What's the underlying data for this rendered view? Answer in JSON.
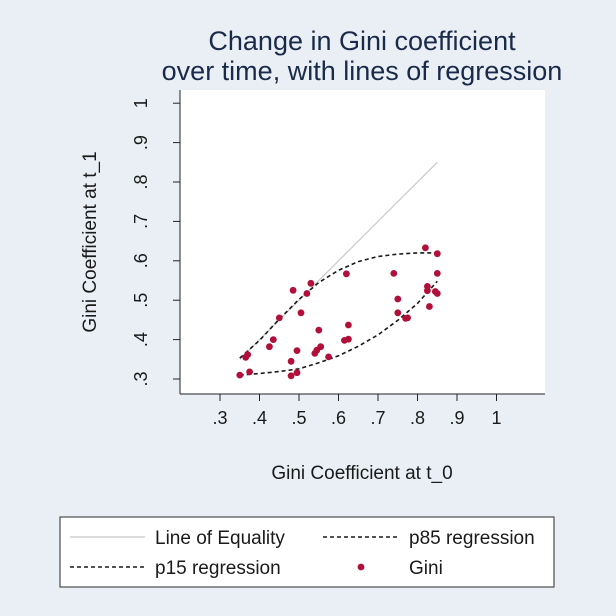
{
  "chart_data": {
    "type": "scatter",
    "title_lines": [
      "Change in Gini coefficient",
      "over time, with lines of regression"
    ],
    "xlabel": "Gini Coefficient at t_0",
    "ylabel": "Gini Coefficient at t_1",
    "xlim": [
      0.3,
      1.0
    ],
    "ylim": [
      0.3,
      1.0
    ],
    "x_ticks": [
      0.3,
      0.4,
      0.5,
      0.6,
      0.7,
      0.8,
      0.9,
      1.0
    ],
    "x_tick_labels": [
      ".3",
      ".4",
      ".5",
      ".6",
      ".7",
      ".8",
      ".9",
      "1"
    ],
    "y_ticks": [
      0.3,
      0.4,
      0.5,
      0.6,
      0.7,
      0.8,
      0.9,
      1.0
    ],
    "y_tick_labels": [
      ".3",
      ".4",
      ".5",
      ".6",
      ".7",
      ".8",
      ".9",
      "1"
    ],
    "grid": false,
    "colors": {
      "background": "#e9eff4",
      "plot_area": "#ffffff",
      "title": "#1a2a4a",
      "equality_line": "#c8c8c8",
      "regression": "#1a1a1a",
      "points": "#b0103a"
    },
    "legend": {
      "placement": "bottom",
      "entries": [
        {
          "key": "equality",
          "label": "Line of Equality",
          "style": "solid"
        },
        {
          "key": "p85",
          "label": "p85 regression",
          "style": "dashed"
        },
        {
          "key": "p15",
          "label": "p15 regression",
          "style": "dashed"
        },
        {
          "key": "gini",
          "label": "Gini",
          "style": "marker"
        }
      ]
    },
    "series": [
      {
        "key": "equality",
        "name": "Line of Equality",
        "style": "line",
        "points": [
          [
            0.35,
            0.35
          ],
          [
            0.85,
            0.85
          ]
        ]
      },
      {
        "key": "p85",
        "name": "p85 regression",
        "style": "dashed",
        "points": [
          [
            0.35,
            0.353
          ],
          [
            0.4,
            0.398
          ],
          [
            0.45,
            0.452
          ],
          [
            0.5,
            0.502
          ],
          [
            0.55,
            0.545
          ],
          [
            0.6,
            0.576
          ],
          [
            0.65,
            0.598
          ],
          [
            0.7,
            0.611
          ],
          [
            0.75,
            0.617
          ],
          [
            0.8,
            0.62
          ],
          [
            0.85,
            0.62
          ]
        ]
      },
      {
        "key": "p15",
        "name": "p15 regression",
        "style": "dashed",
        "points": [
          [
            0.35,
            0.31
          ],
          [
            0.4,
            0.314
          ],
          [
            0.45,
            0.319
          ],
          [
            0.5,
            0.326
          ],
          [
            0.55,
            0.341
          ],
          [
            0.6,
            0.359
          ],
          [
            0.65,
            0.383
          ],
          [
            0.7,
            0.412
          ],
          [
            0.75,
            0.449
          ],
          [
            0.8,
            0.492
          ],
          [
            0.85,
            0.548
          ]
        ]
      },
      {
        "key": "gini",
        "name": "Gini",
        "style": "scatter",
        "points": [
          [
            0.35,
            0.31
          ],
          [
            0.365,
            0.355
          ],
          [
            0.37,
            0.362
          ],
          [
            0.375,
            0.318
          ],
          [
            0.425,
            0.382
          ],
          [
            0.435,
            0.4
          ],
          [
            0.45,
            0.455
          ],
          [
            0.48,
            0.345
          ],
          [
            0.48,
            0.308
          ],
          [
            0.485,
            0.525
          ],
          [
            0.495,
            0.372
          ],
          [
            0.495,
            0.316
          ],
          [
            0.505,
            0.468
          ],
          [
            0.52,
            0.517
          ],
          [
            0.53,
            0.543
          ],
          [
            0.54,
            0.365
          ],
          [
            0.545,
            0.373
          ],
          [
            0.55,
            0.424
          ],
          [
            0.555,
            0.382
          ],
          [
            0.575,
            0.356
          ],
          [
            0.615,
            0.398
          ],
          [
            0.62,
            0.567
          ],
          [
            0.625,
            0.437
          ],
          [
            0.625,
            0.401
          ],
          [
            0.74,
            0.568
          ],
          [
            0.75,
            0.503
          ],
          [
            0.75,
            0.468
          ],
          [
            0.77,
            0.454
          ],
          [
            0.775,
            0.455
          ],
          [
            0.82,
            0.633
          ],
          [
            0.825,
            0.535
          ],
          [
            0.825,
            0.524
          ],
          [
            0.83,
            0.484
          ],
          [
            0.845,
            0.522
          ],
          [
            0.85,
            0.517
          ],
          [
            0.85,
            0.618
          ],
          [
            0.85,
            0.568
          ]
        ]
      }
    ]
  }
}
